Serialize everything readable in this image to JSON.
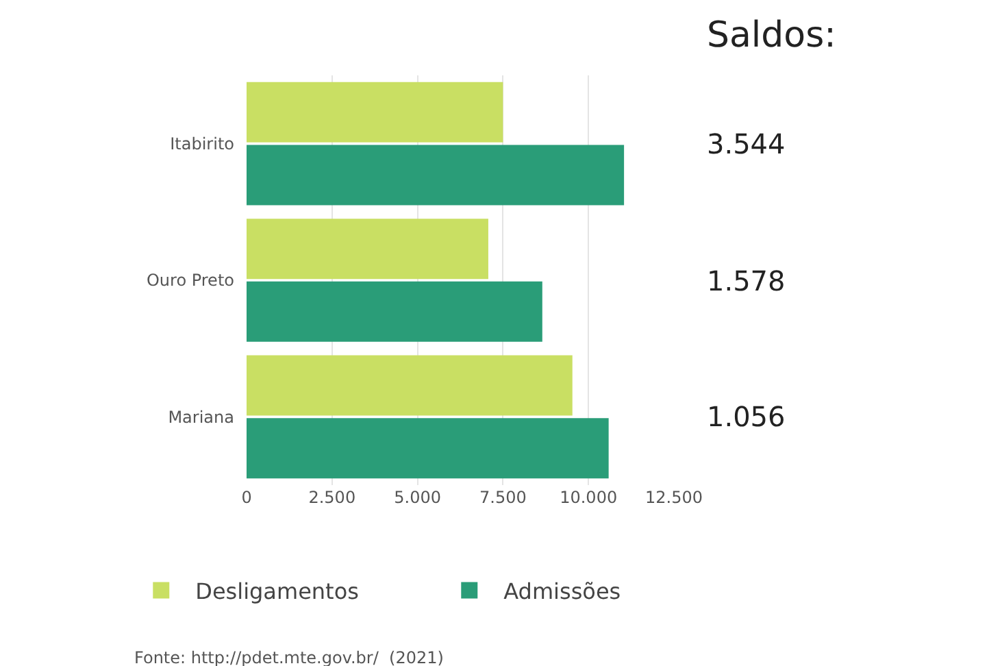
{
  "chart_data": {
    "type": "bar",
    "orientation": "horizontal",
    "categories": [
      "Itabirito",
      "Ouro Preto",
      "Mariana"
    ],
    "series": [
      {
        "name": "Desligamentos",
        "color": "#c9df63",
        "values": [
          7500,
          7070,
          9530
        ]
      },
      {
        "name": "Admissões",
        "color": "#2a9d78",
        "values": [
          11040,
          8650,
          10590
        ]
      }
    ],
    "xlim": [
      0,
      12500
    ],
    "xticks": [
      0,
      {
        "value": 2500,
        "label": "2.500"
      },
      {
        "value": 5000,
        "label": "5.000"
      },
      {
        "value": 7500,
        "label": "7.500"
      },
      {
        "value": 10000,
        "label": "10.000"
      },
      {
        "value": 12500,
        "label": "12.500"
      }
    ],
    "grid": "x",
    "legend": "bottom",
    "annotations": [
      "Saldos:",
      "3.544",
      "1.578",
      "1.056",
      "Fonte: http://pdet.mte.gov.br/  (2021)"
    ]
  }
}
